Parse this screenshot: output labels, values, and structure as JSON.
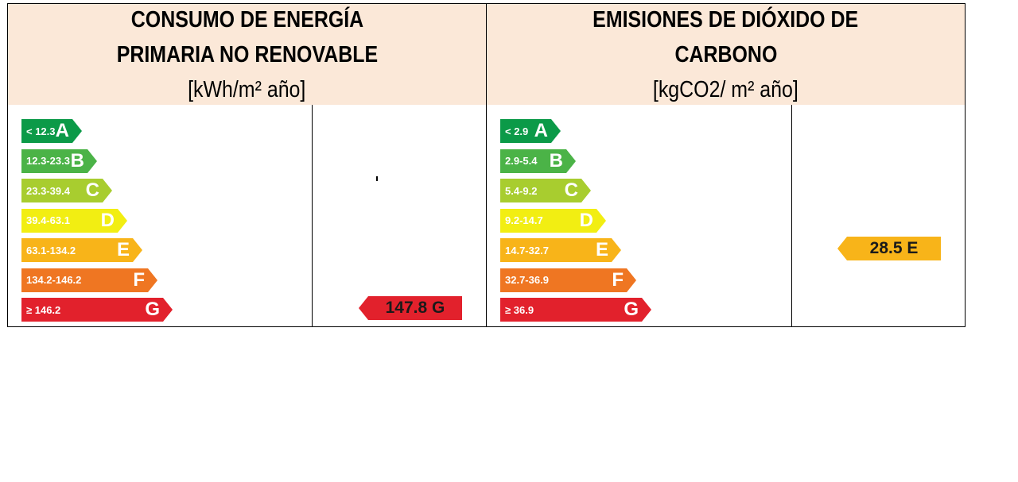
{
  "energy": {
    "title_line1": "CONSUMO DE ENERGÍA",
    "title_line2": "PRIMARIA NO RENOVABLE",
    "unit": "[kWh/m² año]",
    "bands": [
      {
        "range": "< 12.3",
        "letter": "A",
        "color": "#0b9a48"
      },
      {
        "range": "12.3-23.3",
        "letter": "B",
        "color": "#4bb347"
      },
      {
        "range": "23.3-39.4",
        "letter": "C",
        "color": "#a8cd2f"
      },
      {
        "range": "39.4-63.1",
        "letter": "D",
        "color": "#f2ee12"
      },
      {
        "range": "63.1-134.2",
        "letter": "E",
        "color": "#f8b419"
      },
      {
        "range": "134.2-146.2",
        "letter": "F",
        "color": "#ef7622"
      },
      {
        "range": "≥ 146.2",
        "letter": "G",
        "color": "#e2212c"
      }
    ],
    "rating": {
      "label": "147.8 G",
      "value": 147.8,
      "letter": "G",
      "color": "#e2212c"
    }
  },
  "emissions": {
    "title_line1": "EMISIONES DE DIÓXIDO DE",
    "title_line2": "CARBONO",
    "unit": "[kgCO2/ m² año]",
    "bands": [
      {
        "range": "< 2.9",
        "letter": "A",
        "color": "#0b9a48"
      },
      {
        "range": "2.9-5.4",
        "letter": "B",
        "color": "#4bb347"
      },
      {
        "range": "5.4-9.2",
        "letter": "C",
        "color": "#a8cd2f"
      },
      {
        "range": "9.2-14.7",
        "letter": "D",
        "color": "#f2ee12"
      },
      {
        "range": "14.7-32.7",
        "letter": "E",
        "color": "#f8b419"
      },
      {
        "range": "32.7-36.9",
        "letter": "F",
        "color": "#ef7622"
      },
      {
        "range": "≥ 36.9",
        "letter": "G",
        "color": "#e2212c"
      }
    ],
    "rating": {
      "label": "28.5 E",
      "value": 28.5,
      "letter": "E",
      "color": "#f8b419"
    }
  }
}
